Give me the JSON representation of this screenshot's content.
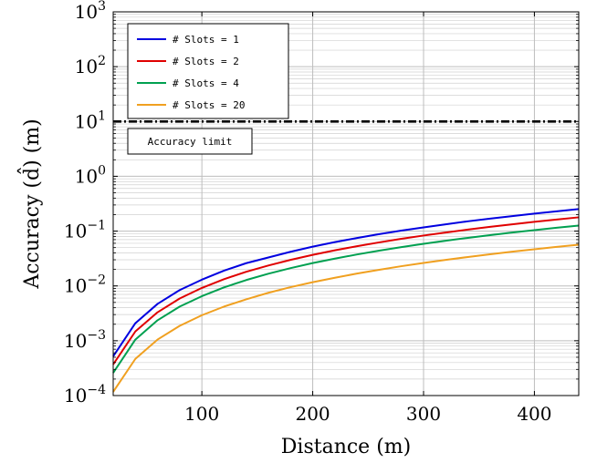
{
  "chart_data": {
    "type": "line",
    "title": "",
    "xlabel": "Distance (m)",
    "ylabel": "Accuracy (d̂) (m)",
    "x_scale": "linear",
    "y_scale": "log",
    "xlim": [
      20,
      440
    ],
    "ylim": [
      0.0001,
      1000
    ],
    "grid": true,
    "x_ticks": [
      100,
      200,
      300,
      400
    ],
    "x_tick_labels": [
      "100",
      "200",
      "300",
      "400"
    ],
    "y_ticks": [
      0.0001,
      0.001,
      0.01,
      0.1,
      1,
      10,
      100,
      1000
    ],
    "y_tick_labels": [
      {
        "base": "10",
        "exp": "−4"
      },
      {
        "base": "10",
        "exp": "−3"
      },
      {
        "base": "10",
        "exp": "−2"
      },
      {
        "base": "10",
        "exp": "−1"
      },
      {
        "base": "10",
        "exp": "0"
      },
      {
        "base": "10",
        "exp": "1"
      },
      {
        "base": "10",
        "exp": "2"
      },
      {
        "base": "10",
        "exp": "3"
      }
    ],
    "legend_position": "top-left",
    "x": [
      20,
      40,
      60,
      80,
      100,
      120,
      140,
      160,
      180,
      200,
      220,
      240,
      260,
      280,
      300,
      320,
      340,
      360,
      380,
      400,
      420,
      440
    ],
    "series": [
      {
        "name": "# Slots = 1",
        "color": "#0000e0",
        "values": [
          0.00052,
          0.00209,
          0.0047,
          0.0084,
          0.013,
          0.019,
          0.026,
          0.033,
          0.042,
          0.052,
          0.063,
          0.075,
          0.088,
          0.102,
          0.117,
          0.133,
          0.151,
          0.169,
          0.188,
          0.209,
          0.23,
          0.253
        ]
      },
      {
        "name": "# Slots = 2",
        "color": "#e00000",
        "values": [
          0.00037,
          0.00148,
          0.0033,
          0.0059,
          0.0092,
          0.0133,
          0.0181,
          0.0236,
          0.0299,
          0.0369,
          0.0446,
          0.0531,
          0.0623,
          0.0723,
          0.083,
          0.0944,
          0.1066,
          0.1195,
          0.1331,
          0.1475,
          0.1626,
          0.1785
        ]
      },
      {
        "name": "# Slots = 4",
        "color": "#00a050",
        "values": [
          0.00026,
          0.00105,
          0.00236,
          0.0042,
          0.0065,
          0.0094,
          0.0128,
          0.0167,
          0.0211,
          0.0261,
          0.0315,
          0.0375,
          0.044,
          0.0511,
          0.0587,
          0.0668,
          0.0754,
          0.0845,
          0.0941,
          0.1043,
          0.115,
          0.1262
        ]
      },
      {
        "name": "# Slots = 20",
        "color": "#f0a020",
        "values": [
          0.000117,
          0.000467,
          0.00105,
          0.00187,
          0.00292,
          0.0042,
          0.0057,
          0.0075,
          0.0095,
          0.0117,
          0.0141,
          0.0168,
          0.0197,
          0.0229,
          0.0263,
          0.0299,
          0.0337,
          0.0378,
          0.0421,
          0.0467,
          0.0515,
          0.0565
        ]
      }
    ],
    "reference_line": {
      "label": "Accuracy limit",
      "y": 10,
      "color": "#000000",
      "style": "dash-dot"
    }
  }
}
